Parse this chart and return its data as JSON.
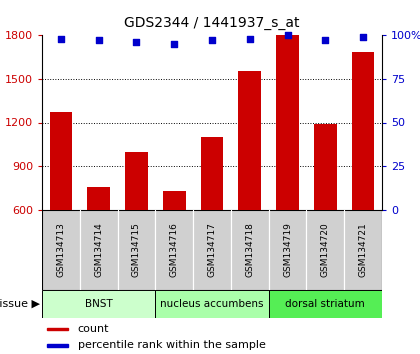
{
  "title": "GDS2344 / 1441937_s_at",
  "samples": [
    "GSM134713",
    "GSM134714",
    "GSM134715",
    "GSM134716",
    "GSM134717",
    "GSM134718",
    "GSM134719",
    "GSM134720",
    "GSM134721"
  ],
  "counts": [
    1270,
    760,
    1000,
    730,
    1100,
    1550,
    1800,
    1190,
    1680
  ],
  "percentiles": [
    98,
    97,
    96,
    95,
    97,
    98,
    100,
    97,
    99
  ],
  "tissues": [
    {
      "label": "BNST",
      "start": 0,
      "end": 3,
      "color": "#ccffcc"
    },
    {
      "label": "nucleus accumbens",
      "start": 3,
      "end": 6,
      "color": "#aaffaa"
    },
    {
      "label": "dorsal striatum",
      "start": 6,
      "end": 9,
      "color": "#55ee55"
    }
  ],
  "bar_color": "#cc0000",
  "dot_color": "#0000cc",
  "ylim_left": [
    600,
    1800
  ],
  "ylim_right": [
    0,
    100
  ],
  "yticks_left": [
    600,
    900,
    1200,
    1500,
    1800
  ],
  "yticks_right": [
    0,
    25,
    50,
    75,
    100
  ],
  "tick_label_color_left": "#cc0000",
  "tick_label_color_right": "#0000cc",
  "legend_count_color": "#cc0000",
  "legend_pct_color": "#0000cc",
  "sample_box_color": "#d0d0d0",
  "grid_lines": [
    900,
    1200,
    1500
  ]
}
